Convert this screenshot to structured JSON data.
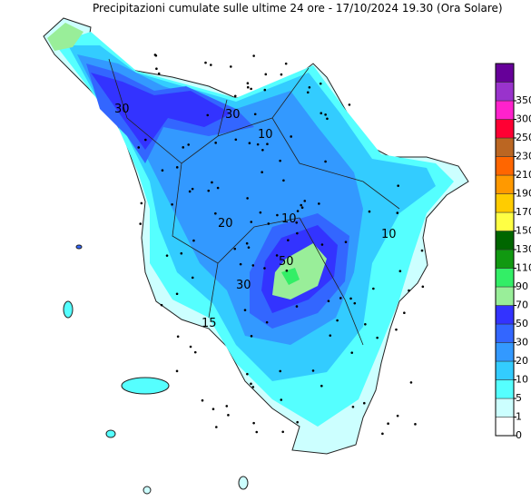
{
  "title": "Precipitazioni cumulate sulle ultime 24 ore - 17/10/2024 19.30 (Ora Solare)",
  "legend": {
    "levels": [
      0,
      1,
      5,
      10,
      20,
      30,
      50,
      70,
      90,
      110,
      130,
      150,
      170,
      190,
      210,
      230,
      250,
      300,
      350
    ],
    "colors": [
      "#ffffff",
      "#ccffff",
      "#55ffff",
      "#33ccff",
      "#3399ff",
      "#3366ff",
      "#3333ff",
      "#99ee99",
      "#33ee66",
      "#119911",
      "#006600",
      "#ffff44",
      "#ffcc00",
      "#ff9900",
      "#ff6600",
      "#bb6622",
      "#ff0033",
      "#ff22cc",
      "#9933cc",
      "#660099"
    ]
  },
  "map_labels": [
    "30",
    "10",
    "10",
    "20",
    "30",
    "50",
    "15",
    "10",
    "30"
  ]
}
